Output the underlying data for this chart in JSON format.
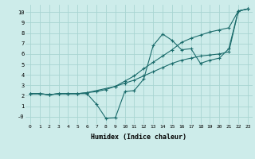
{
  "background_color": "#cdecea",
  "grid_color": "#a8d5d2",
  "line_color": "#1a6b6b",
  "xlim": [
    -0.5,
    23.5
  ],
  "ylim": [
    -0.7,
    10.7
  ],
  "xlabel": "Humidex (Indice chaleur)",
  "xticks": [
    0,
    1,
    2,
    3,
    4,
    5,
    6,
    7,
    8,
    9,
    10,
    11,
    12,
    13,
    14,
    15,
    16,
    17,
    18,
    19,
    20,
    21,
    22,
    23
  ],
  "yticks": [
    0,
    1,
    2,
    3,
    4,
    5,
    6,
    7,
    8,
    9,
    10
  ],
  "ytick_labels": [
    "-0",
    "1",
    "2",
    "3",
    "4",
    "5",
    "6",
    "7",
    "8",
    "9",
    "10"
  ],
  "line1_x": [
    0,
    1,
    2,
    3,
    4,
    5,
    6,
    7,
    8,
    9,
    10,
    11,
    12,
    13,
    14,
    15,
    16,
    17,
    18,
    19,
    20,
    21,
    22,
    23
  ],
  "line1_y": [
    2.2,
    2.2,
    2.1,
    2.2,
    2.2,
    2.2,
    2.3,
    2.4,
    2.6,
    2.9,
    3.2,
    3.5,
    3.9,
    4.3,
    4.7,
    5.1,
    5.4,
    5.6,
    5.8,
    5.9,
    6.0,
    6.2,
    10.1,
    10.3
  ],
  "line2_x": [
    0,
    1,
    2,
    3,
    4,
    5,
    6,
    9,
    10,
    11,
    12,
    13,
    14,
    15,
    16,
    17,
    18,
    19,
    20,
    21,
    22,
    23
  ],
  "line2_y": [
    2.2,
    2.2,
    2.1,
    2.2,
    2.2,
    2.2,
    2.3,
    2.9,
    3.4,
    3.9,
    4.6,
    5.2,
    5.8,
    6.4,
    7.1,
    7.5,
    7.8,
    8.1,
    8.3,
    8.5,
    10.1,
    10.3
  ],
  "line3_x": [
    0,
    1,
    2,
    3,
    4,
    5,
    6,
    7,
    8,
    9,
    10,
    11,
    12,
    13,
    14,
    15,
    16,
    17,
    18,
    19,
    20,
    21,
    22,
    23
  ],
  "line3_y": [
    2.2,
    2.2,
    2.1,
    2.2,
    2.2,
    2.2,
    2.2,
    1.2,
    -0.15,
    -0.1,
    2.4,
    2.5,
    3.6,
    6.8,
    7.9,
    7.3,
    6.4,
    6.5,
    5.1,
    5.4,
    5.6,
    6.5,
    10.1,
    10.3
  ]
}
